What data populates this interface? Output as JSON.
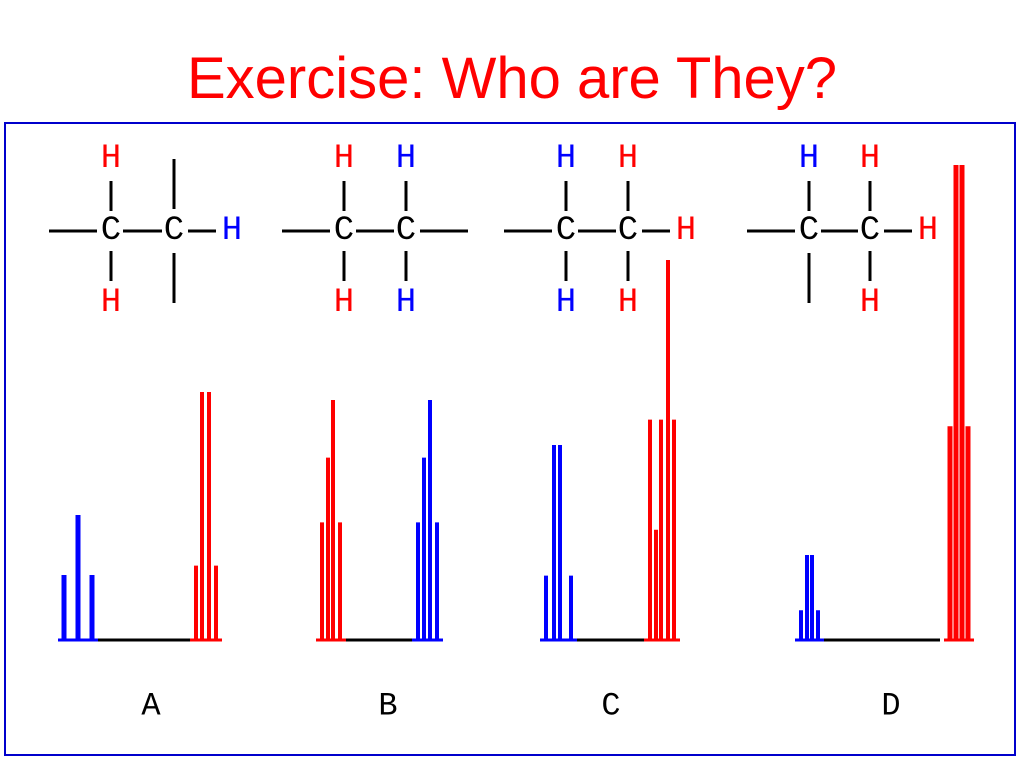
{
  "title": "Exercise: Who are They?",
  "colors": {
    "red": "#ff0000",
    "blue": "#0000ff",
    "black": "#000000",
    "frame": "#0000cc"
  },
  "molecules": [
    {
      "id": "A",
      "label": "A",
      "c1": {
        "symbol": "C",
        "top": {
          "text": "H",
          "color": "red"
        },
        "bottom": {
          "text": "H",
          "color": "red"
        },
        "left": "bond"
      },
      "c2": {
        "symbol": "C",
        "top": "bond",
        "bottom": "bond",
        "right": {
          "text": "H",
          "color": "blue"
        }
      }
    },
    {
      "id": "B",
      "label": "B",
      "c1": {
        "symbol": "C",
        "top": {
          "text": "H",
          "color": "red"
        },
        "bottom": {
          "text": "H",
          "color": "red"
        },
        "left": "bond"
      },
      "c2": {
        "symbol": "C",
        "top": {
          "text": "H",
          "color": "blue"
        },
        "bottom": {
          "text": "H",
          "color": "blue"
        },
        "right": "bond"
      }
    },
    {
      "id": "C",
      "label": "C",
      "c1": {
        "symbol": "C",
        "top": {
          "text": "H",
          "color": "blue"
        },
        "bottom": {
          "text": "H",
          "color": "blue"
        },
        "left": "bond"
      },
      "c2": {
        "symbol": "C",
        "top": {
          "text": "H",
          "color": "red"
        },
        "bottom": {
          "text": "H",
          "color": "red"
        },
        "right": {
          "text": "H",
          "color": "red"
        }
      }
    },
    {
      "id": "D",
      "label": "D",
      "c1": {
        "symbol": "C",
        "top": {
          "text": "H",
          "color": "blue"
        },
        "bottom": "bond",
        "left": "bond"
      },
      "c2": {
        "symbol": "C",
        "top": {
          "text": "H",
          "color": "red"
        },
        "bottom": {
          "text": "H",
          "color": "red"
        },
        "right": {
          "text": "H",
          "color": "red"
        }
      }
    }
  ],
  "spectra": [
    {
      "id": "A",
      "multiplets": [
        {
          "color": "blue",
          "relative_heights": [
            0.52,
            1.0,
            0.52
          ]
        },
        {
          "color": "red",
          "relative_heights": [
            0.3,
            1.0,
            1.0,
            0.3
          ]
        }
      ]
    },
    {
      "id": "B",
      "multiplets": [
        {
          "color": "red",
          "relative_heights": [
            0.49,
            0.76,
            1.0,
            0.49
          ]
        },
        {
          "color": "blue",
          "relative_heights": [
            0.49,
            0.76,
            1.0,
            0.49
          ]
        }
      ]
    },
    {
      "id": "C",
      "multiplets": [
        {
          "color": "blue",
          "relative_heights": [
            0.33,
            1.0,
            1.0,
            0.33
          ]
        },
        {
          "color": "red",
          "relative_heights": [
            0.58,
            0.29,
            0.58,
            1.0,
            0.58
          ]
        }
      ]
    },
    {
      "id": "D",
      "multiplets": [
        {
          "color": "blue",
          "relative_heights": [
            0.35,
            1.0,
            1.0,
            0.35
          ]
        },
        {
          "color": "red",
          "relative_heights": [
            0.45,
            1.0,
            1.0,
            0.45
          ]
        }
      ]
    }
  ]
}
